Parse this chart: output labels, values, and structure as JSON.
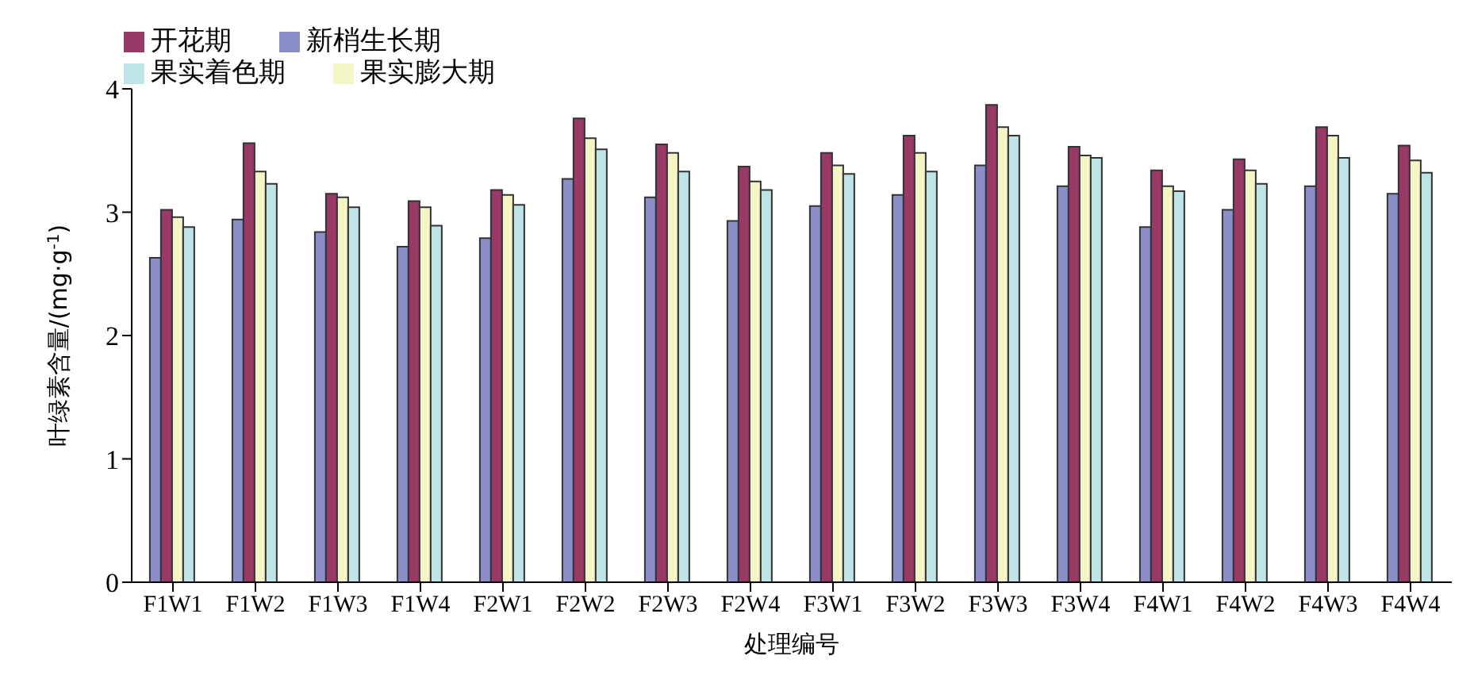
{
  "chart_data": {
    "type": "bar",
    "xlabel": "处理编号",
    "ylabel": "叶绿素含量/(mg·g$^{-1}$)",
    "categories": [
      "F1W1",
      "F1W2",
      "F1W3",
      "F1W4",
      "F2W1",
      "F2W2",
      "F2W3",
      "F2W4",
      "F3W1",
      "F3W2",
      "F3W3",
      "F3W4",
      "F4W1",
      "F4W2",
      "F4W3",
      "F4W4"
    ],
    "series": [
      {
        "name": "新梢生长期",
        "color": "#8b8fc8",
        "values": [
          2.63,
          2.94,
          2.84,
          2.72,
          2.79,
          3.27,
          3.12,
          2.93,
          3.05,
          3.14,
          3.38,
          3.21,
          2.88,
          3.02,
          3.21,
          3.15
        ]
      },
      {
        "name": "开花期",
        "color": "#983a68",
        "values": [
          3.02,
          3.56,
          3.15,
          3.09,
          3.18,
          3.76,
          3.55,
          3.37,
          3.48,
          3.62,
          3.87,
          3.53,
          3.34,
          3.43,
          3.69,
          3.54
        ]
      },
      {
        "name": "果实膨大期",
        "color": "#f4f4c4",
        "values": [
          2.96,
          3.33,
          3.12,
          3.04,
          3.14,
          3.6,
          3.48,
          3.25,
          3.38,
          3.48,
          3.69,
          3.46,
          3.21,
          3.34,
          3.62,
          3.42
        ]
      },
      {
        "name": "果实着色期",
        "color": "#bfe4e8",
        "values": [
          2.88,
          3.23,
          3.04,
          2.89,
          3.06,
          3.51,
          3.33,
          3.18,
          3.31,
          3.33,
          3.62,
          3.44,
          3.17,
          3.23,
          3.44,
          3.32
        ]
      }
    ],
    "ylim": [
      0,
      4
    ],
    "yticks": [
      0,
      1,
      2,
      3,
      4
    ],
    "grid": false,
    "legend": "top left"
  }
}
